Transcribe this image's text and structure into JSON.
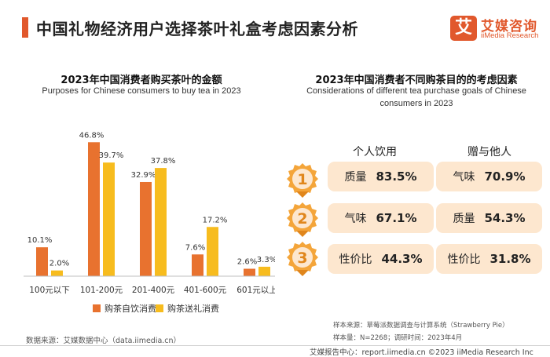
{
  "header": {
    "title": "中国礼物经济用户选择茶叶礼盒考虑因素分析"
  },
  "logo": {
    "mark": "艾",
    "name_cn": "艾媒咨询",
    "name_en": "iiMedia Research"
  },
  "left_panel": {
    "title": "2023年中国消费者购买茶叶的金额",
    "subtitle": "Purposes for Chinese consumers to buy tea in 2023"
  },
  "right_panel": {
    "title": "2023年中国消费者不同购茶目的的考虑因素",
    "subtitle_line1": "Considerations of different tea purchase goals of Chinese",
    "subtitle_line2": "consumers in 2023",
    "col_self": "个人饮用",
    "col_gift": "赠与他人",
    "rows": [
      {
        "rank": "1",
        "self_factor": "质量",
        "self_value": "83.5%",
        "gift_factor": "气味",
        "gift_value": "70.9%"
      },
      {
        "rank": "2",
        "self_factor": "气味",
        "self_value": "67.1%",
        "gift_factor": "质量",
        "gift_value": "54.3%"
      },
      {
        "rank": "3",
        "self_factor": "性价比",
        "self_value": "44.3%",
        "gift_factor": "性价比",
        "gift_value": "31.8%"
      }
    ]
  },
  "chart_data": {
    "type": "bar",
    "categories": [
      "100元以下",
      "101-200元",
      "201-400元",
      "401-600元",
      "601元以上"
    ],
    "series": [
      {
        "name": "购茶自饮消费",
        "values": [
          10.1,
          46.8,
          32.9,
          7.6,
          2.6
        ],
        "labels": [
          "10.1%",
          "46.8%",
          "32.9%",
          "7.6%",
          "2.6%"
        ],
        "color": "#e8722f"
      },
      {
        "name": "购茶送礼消费",
        "values": [
          2.0,
          39.7,
          37.8,
          17.2,
          3.3
        ],
        "labels": [
          "2.0%",
          "39.7%",
          "37.8%",
          "17.2%",
          "3.3%"
        ],
        "color": "#f7bc1e"
      }
    ],
    "ylim": [
      0,
      50
    ],
    "grid": false,
    "legend": "bottom"
  },
  "colors": {
    "accent": "#e1582c",
    "medal": "#f4a53a",
    "medal_dark": "#e0861c",
    "cell_bg": "#fde7cf"
  },
  "footer": {
    "source": "数据来源：艾媒数据中心（data.iimedia.cn）",
    "sample_source": "样本来源：草莓派数据调查与计算系统（Strawberry Pie）",
    "sample_size": "样本量：N=2268；调研时间：2023年4月",
    "copyright": "艾媒报告中心：report.iimedia.cn  ©2023  iiMedia Research  Inc"
  }
}
